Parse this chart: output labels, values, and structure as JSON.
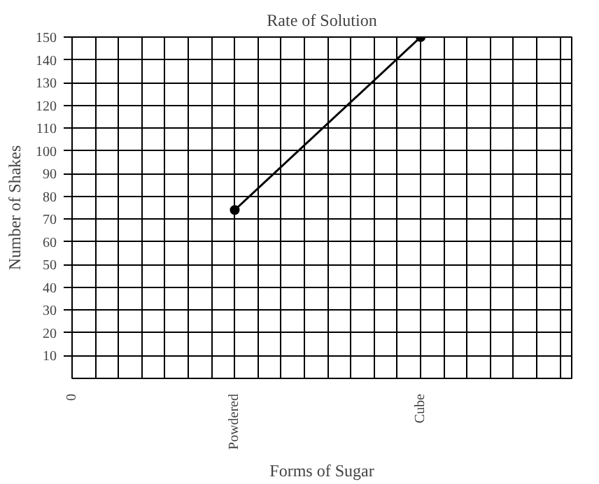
{
  "chart_data": {
    "type": "line",
    "title": "Rate of Solution",
    "xlabel": "Forms of Sugar",
    "ylabel": "Number of Shakes",
    "categories": [
      "0",
      null,
      null,
      null,
      null,
      null,
      null,
      "Powdered",
      null,
      null,
      null,
      null,
      null,
      null,
      null,
      "Cube",
      null,
      null,
      null,
      null,
      null,
      null
    ],
    "series": [
      {
        "color": "#000000",
        "values": [
          null,
          null,
          null,
          null,
          null,
          null,
          null,
          74,
          null,
          null,
          null,
          null,
          null,
          null,
          null,
          150,
          null,
          null,
          null,
          null,
          null,
          null
        ]
      }
    ],
    "marker": "circle",
    "line_style": "solid",
    "grid": true,
    "ylim": [
      0,
      150
    ],
    "yticks": [
      10,
      20,
      30,
      40,
      50,
      60,
      70,
      80,
      90,
      100,
      110,
      120,
      130,
      140,
      150
    ]
  }
}
